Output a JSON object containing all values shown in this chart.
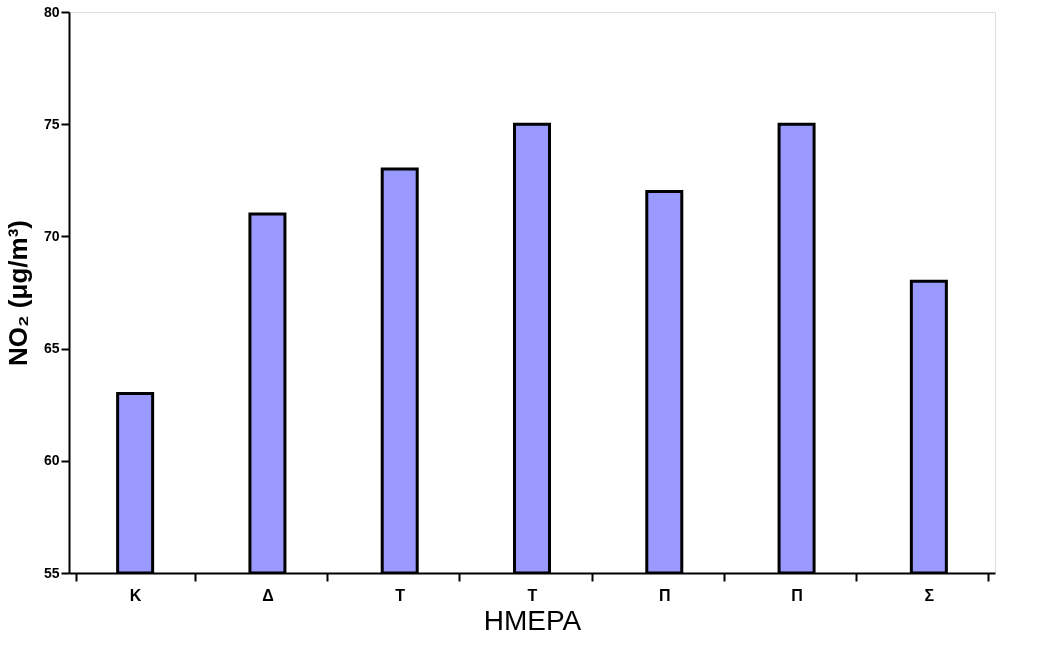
{
  "chart_data": {
    "type": "bar",
    "xlabel": "ΗΜΕΡΑ",
    "ylabel": "NO₂ (μg/m³)",
    "categories": [
      "Κ",
      "Δ",
      "Τ",
      "Τ",
      "Π",
      "Π",
      "Σ"
    ],
    "values": [
      63,
      71,
      73,
      75,
      72,
      75,
      68
    ],
    "color": "#9999ff",
    "ylim": [
      55,
      80
    ],
    "yticks": [
      55,
      60,
      65,
      70,
      75,
      80
    ],
    "grid": false
  }
}
